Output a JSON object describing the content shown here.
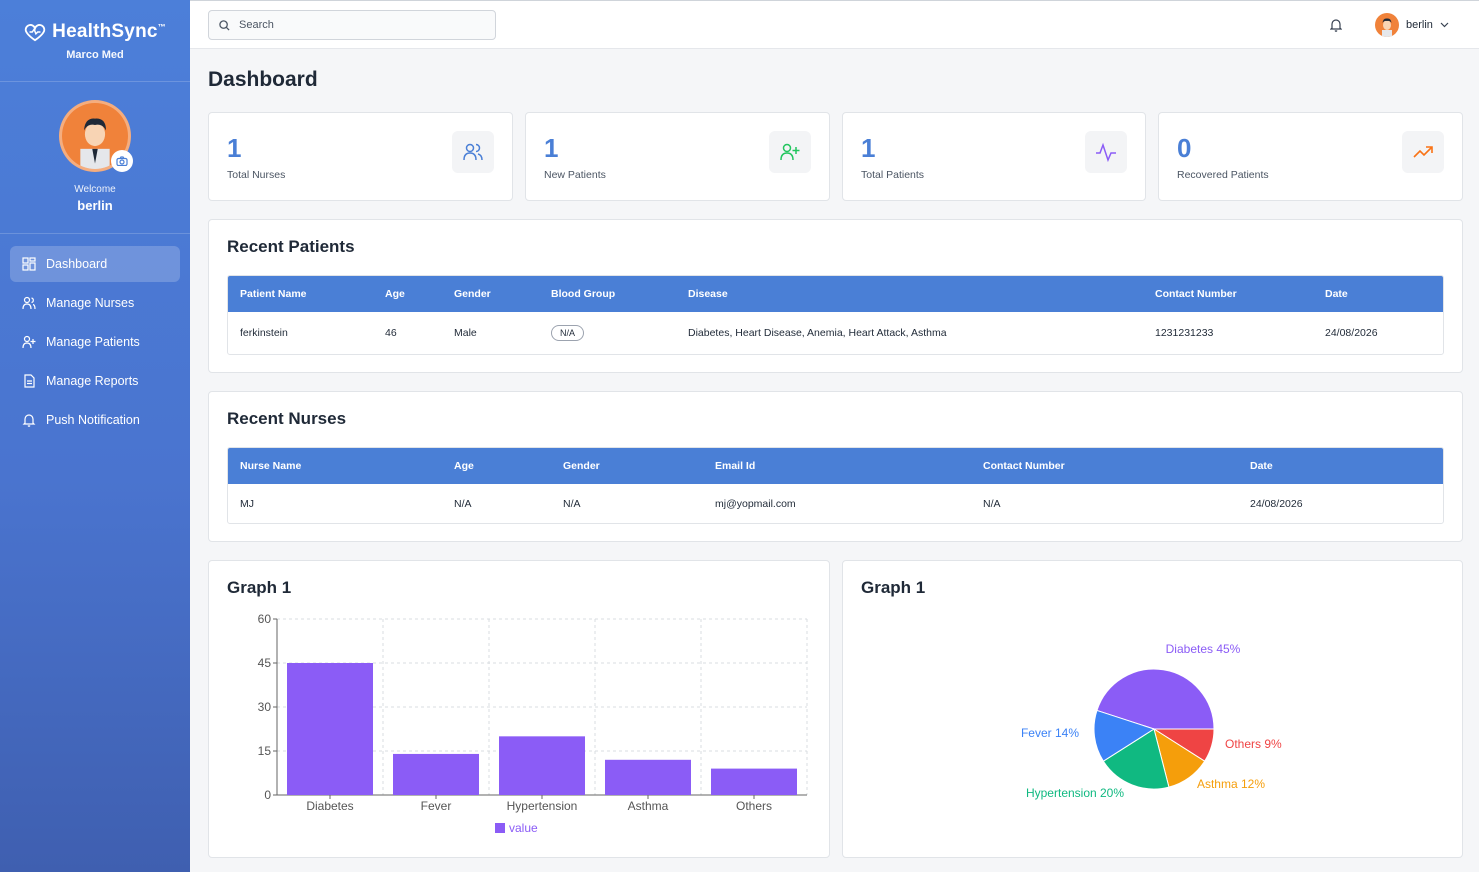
{
  "brand": {
    "name": "HealthSync",
    "tm": "™",
    "subtitle": "Marco Med"
  },
  "profile": {
    "welcome": "Welcome",
    "name": "berlin"
  },
  "nav": [
    {
      "label": "Dashboard",
      "icon": "grid-icon",
      "active": true
    },
    {
      "label": "Manage Nurses",
      "icon": "users-icon"
    },
    {
      "label": "Manage Patients",
      "icon": "user-plus-icon"
    },
    {
      "label": "Manage Reports",
      "icon": "file-icon"
    },
    {
      "label": "Push Notification",
      "icon": "bell-icon"
    }
  ],
  "topbar": {
    "search_placeholder": "Search",
    "user": "berlin"
  },
  "page_title": "Dashboard",
  "stats": [
    {
      "value": "1",
      "label": "Total Nurses",
      "icon": "users-icon",
      "color": "#4a7fd6"
    },
    {
      "value": "1",
      "label": "New Patients",
      "icon": "user-plus-icon",
      "color": "#22c55e"
    },
    {
      "value": "1",
      "label": "Total Patients",
      "icon": "activity-icon",
      "color": "#8b5cf6"
    },
    {
      "value": "0",
      "label": "Recovered Patients",
      "icon": "trending-up-icon",
      "color": "#f97316"
    }
  ],
  "recent_patients": {
    "title": "Recent Patients",
    "headers": [
      "Patient Name",
      "Age",
      "Gender",
      "Blood Group",
      "Disease",
      "Contact Number",
      "Date"
    ],
    "rows": [
      [
        "ferkinstein",
        "46",
        "Male",
        "N/A",
        "Diabetes, Heart Disease, Anemia, Heart Attack, Asthma",
        "1231231233",
        "24/08/2026"
      ]
    ]
  },
  "recent_nurses": {
    "title": "Recent Nurses",
    "headers": [
      "Nurse Name",
      "Age",
      "Gender",
      "Email Id",
      "Contact Number",
      "Date"
    ],
    "rows": [
      [
        "MJ",
        "N/A",
        "N/A",
        "mj@yopmail.com",
        "N/A",
        "24/08/2026"
      ]
    ]
  },
  "graph_titles": [
    "Graph 1",
    "Graph 1"
  ],
  "chart_data": [
    {
      "type": "bar",
      "title": "Graph 1",
      "categories": [
        "Diabetes",
        "Fever",
        "Hypertension",
        "Asthma",
        "Others"
      ],
      "series": [
        {
          "name": "value",
          "values": [
            45,
            14,
            20,
            12,
            9
          ]
        }
      ],
      "ylim": [
        0,
        60
      ],
      "yticks": [
        0,
        15,
        30,
        45,
        60
      ],
      "grid": true,
      "legend": "bottom",
      "color": "#8b5cf6"
    },
    {
      "type": "pie",
      "title": "Graph 1",
      "slices": [
        {
          "label": "Diabetes",
          "value": 45,
          "color": "#8b5cf6"
        },
        {
          "label": "Others",
          "value": 9,
          "color": "#ef4444"
        },
        {
          "label": "Asthma",
          "value": 12,
          "color": "#f59e0b"
        },
        {
          "label": "Hypertension",
          "value": 20,
          "color": "#10b981"
        },
        {
          "label": "Fever",
          "value": 14,
          "color": "#3b82f6"
        }
      ]
    }
  ]
}
